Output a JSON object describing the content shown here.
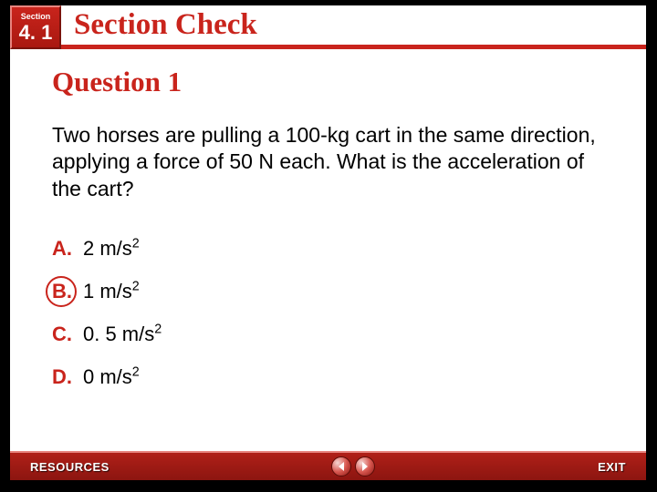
{
  "header": {
    "section_label": "Section",
    "section_number": "4. 1",
    "title": "Section Check"
  },
  "question": {
    "heading": "Question 1",
    "text": "Two horses are pulling a 100-kg cart in the same direction, applying a force of 50 N each. What is the acceleration of the cart?"
  },
  "answers": [
    {
      "letter": "A.",
      "value": "2 m/s",
      "exp": "2",
      "correct": false
    },
    {
      "letter": "B.",
      "value": "1 m/s",
      "exp": "2",
      "correct": true
    },
    {
      "letter": "C.",
      "value": "0. 5 m/s",
      "exp": "2",
      "correct": false
    },
    {
      "letter": "D.",
      "value": "0 m/s",
      "exp": "2",
      "correct": false
    }
  ],
  "footer": {
    "resources": "RESOURCES",
    "exit": "EXIT"
  },
  "colors": {
    "accent": "#c9241c",
    "footer_bg": "#8c1510"
  }
}
